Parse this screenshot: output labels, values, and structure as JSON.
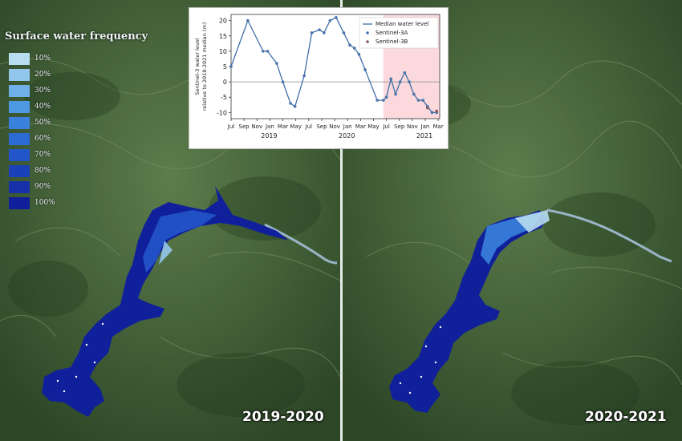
{
  "legend": {
    "title": "Surface water frequency",
    "items": [
      {
        "label": "10%",
        "color": "#b9ddf0"
      },
      {
        "label": "20%",
        "color": "#93c6ec"
      },
      {
        "label": "30%",
        "color": "#6fb0e8"
      },
      {
        "label": "40%",
        "color": "#4f98e2"
      },
      {
        "label": "50%",
        "color": "#3a81dc"
      },
      {
        "label": "60%",
        "color": "#2c6bd4"
      },
      {
        "label": "70%",
        "color": "#2255c9"
      },
      {
        "label": "80%",
        "color": "#1b41b8"
      },
      {
        "label": "90%",
        "color": "#1731a8"
      },
      {
        "label": "100%",
        "color": "#10209a"
      }
    ]
  },
  "panels": {
    "left": {
      "label": "2019-2020"
    },
    "right": {
      "label": "2020-2021"
    }
  },
  "colors": {
    "line": "#3f6fa8",
    "point": "#4a74ad",
    "point_b": "#8a5a5a",
    "highlight": "#fbd9dd"
  },
  "chart_data": {
    "type": "line",
    "ylabel": "Sentinel-3 water level\nrelative to 2018-2021 median (m)",
    "ylim": [
      -12,
      22
    ],
    "y_ticks": [
      20,
      15,
      10,
      5,
      0,
      -5,
      -10
    ],
    "x_ticks": [
      "Jul",
      "Sep",
      "Nov",
      "Jan",
      "Mar",
      "May",
      "Jul",
      "Sep",
      "Nov",
      "Jan",
      "Mar",
      "May",
      "Jul",
      "Sep",
      "Nov",
      "Jan",
      "Mar"
    ],
    "year_labels": [
      "2019",
      "2020",
      "2021"
    ],
    "highlight_from": "May 2020",
    "legend": [
      "Median water level",
      "Sentinel-3A",
      "Sentinel-3B"
    ],
    "series": [
      {
        "name": "Median water level",
        "values": [
          5,
          20,
          10,
          10,
          6,
          0,
          -7,
          -8,
          2,
          16,
          17,
          16,
          20,
          21,
          16,
          12,
          11,
          9,
          4,
          -6,
          -6,
          -5,
          1,
          -4,
          0,
          3,
          0,
          -4,
          -6,
          -6,
          -8,
          -10,
          -10
        ]
      }
    ],
    "x": [
      0,
      1.1,
      2.1,
      2.4,
      3.0,
      3.4,
      3.9,
      4.2,
      4.8,
      5.3,
      5.8,
      6.1,
      6.5,
      6.9,
      7.4,
      7.8,
      8.1,
      8.4,
      8.8,
      9.6,
      10.0,
      10.2,
      10.5,
      10.8,
      11.1,
      11.4,
      11.7,
      12.0,
      12.3,
      12.6,
      12.9,
      13.2,
      13.5
    ],
    "sentinel_3b_points": [
      [
        12.9,
        -8.5
      ],
      [
        13.5,
        -9.5
      ]
    ]
  }
}
